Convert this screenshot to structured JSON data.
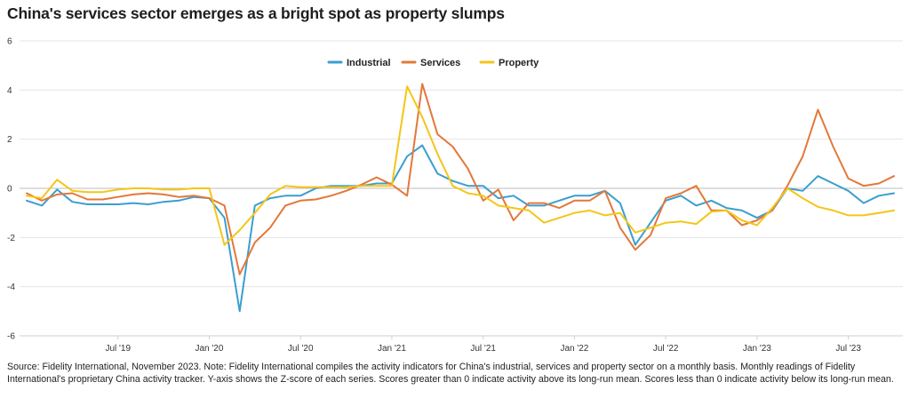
{
  "title": "China's services sector emerges as a bright spot as property slumps",
  "source": "Source: Fidelity International, November 2023. Note: Fidelity International compiles the activity indicators for China's industrial, services and property sector on a monthly basis. Monthly readings of Fidelity International's proprietary China activity tracker. Y-axis shows the Z-score of each series. Scores greater than 0 indicate activity above its long-run mean. Scores less than 0 indicate activity below its long-run mean.",
  "chart_data": {
    "type": "line",
    "x": [
      "2019-01",
      "2019-02",
      "2019-03",
      "2019-04",
      "2019-05",
      "2019-06",
      "2019-07",
      "2019-08",
      "2019-09",
      "2019-10",
      "2019-11",
      "2019-12",
      "2020-01",
      "2020-02",
      "2020-03",
      "2020-04",
      "2020-05",
      "2020-06",
      "2020-07",
      "2020-08",
      "2020-09",
      "2020-10",
      "2020-11",
      "2020-12",
      "2021-01",
      "2021-02",
      "2021-03",
      "2021-04",
      "2021-05",
      "2021-06",
      "2021-07",
      "2021-08",
      "2021-09",
      "2021-10",
      "2021-11",
      "2021-12",
      "2022-01",
      "2022-02",
      "2022-03",
      "2022-04",
      "2022-05",
      "2022-06",
      "2022-07",
      "2022-08",
      "2022-09",
      "2022-10",
      "2022-11",
      "2022-12",
      "2023-01",
      "2023-02",
      "2023-03",
      "2023-04",
      "2023-05",
      "2023-06",
      "2023-07",
      "2023-08",
      "2023-09",
      "2023-10"
    ],
    "series": [
      {
        "name": "Industrial",
        "color": "#3b9ed0",
        "values": [
          -0.5,
          -0.7,
          -0.05,
          -0.55,
          -0.65,
          -0.65,
          -0.65,
          -0.6,
          -0.65,
          -0.55,
          -0.5,
          -0.35,
          -0.4,
          -1.2,
          -5.0,
          -0.7,
          -0.4,
          -0.3,
          -0.3,
          0.0,
          0.1,
          0.1,
          0.1,
          0.2,
          0.2,
          1.3,
          1.75,
          0.6,
          0.3,
          0.1,
          0.1,
          -0.4,
          -0.3,
          -0.7,
          -0.7,
          -0.5,
          -0.3,
          -0.3,
          -0.1,
          -0.6,
          -2.3,
          -1.4,
          -0.5,
          -0.3,
          -0.7,
          -0.5,
          -0.8,
          -0.9,
          -1.2,
          -0.9,
          0.0,
          -0.1,
          0.5,
          0.2,
          -0.1,
          -0.6,
          -0.3,
          -0.2
        ]
      },
      {
        "name": "Services",
        "color": "#e3783a",
        "values": [
          -0.2,
          -0.5,
          -0.25,
          -0.2,
          -0.45,
          -0.45,
          -0.35,
          -0.25,
          -0.2,
          -0.25,
          -0.35,
          -0.3,
          -0.4,
          -0.7,
          -3.5,
          -2.2,
          -1.6,
          -0.7,
          -0.5,
          -0.45,
          -0.3,
          -0.1,
          0.15,
          0.45,
          0.15,
          -0.3,
          4.25,
          2.2,
          1.7,
          0.8,
          -0.5,
          -0.05,
          -1.3,
          -0.6,
          -0.6,
          -0.8,
          -0.5,
          -0.5,
          -0.1,
          -1.6,
          -2.5,
          -1.9,
          -0.4,
          -0.2,
          0.1,
          -0.9,
          -0.9,
          -1.5,
          -1.3,
          -0.9,
          0.1,
          1.3,
          3.2,
          1.7,
          0.4,
          0.1,
          0.2,
          0.5
        ]
      },
      {
        "name": "Property",
        "color": "#f5c518",
        "values": [
          -0.3,
          -0.4,
          0.35,
          -0.1,
          -0.15,
          -0.15,
          -0.05,
          0.0,
          0.0,
          -0.05,
          -0.05,
          0.0,
          0.0,
          -2.3,
          -1.7,
          -1.0,
          -0.25,
          0.1,
          0.05,
          0.05,
          0.05,
          0.05,
          0.1,
          0.1,
          0.1,
          4.15,
          2.9,
          1.4,
          0.1,
          -0.2,
          -0.3,
          -0.7,
          -0.8,
          -0.9,
          -1.4,
          -1.2,
          -1.0,
          -0.9,
          -1.1,
          -1.0,
          -1.8,
          -1.6,
          -1.4,
          -1.35,
          -1.45,
          -0.95,
          -0.9,
          -1.3,
          -1.5,
          -0.8,
          0.0,
          -0.4,
          -0.75,
          -0.9,
          -1.1,
          -1.1,
          -1.0,
          -0.9
        ]
      }
    ],
    "xticks": [
      {
        "x": "2019-07",
        "label": "Jul '19"
      },
      {
        "x": "2020-01",
        "label": "Jan '20"
      },
      {
        "x": "2020-07",
        "label": "Jul '20"
      },
      {
        "x": "2021-01",
        "label": "Jan '21"
      },
      {
        "x": "2021-07",
        "label": "Jul '21"
      },
      {
        "x": "2022-01",
        "label": "Jan '22"
      },
      {
        "x": "2022-07",
        "label": "Jul '22"
      },
      {
        "x": "2023-01",
        "label": "Jan '23"
      },
      {
        "x": "2023-07",
        "label": "Jul '23"
      }
    ],
    "yticks": [
      6,
      4,
      2,
      0,
      -2,
      -4,
      -6
    ],
    "ylim": [
      -6,
      6
    ],
    "grid": true,
    "legend": "top-center"
  }
}
